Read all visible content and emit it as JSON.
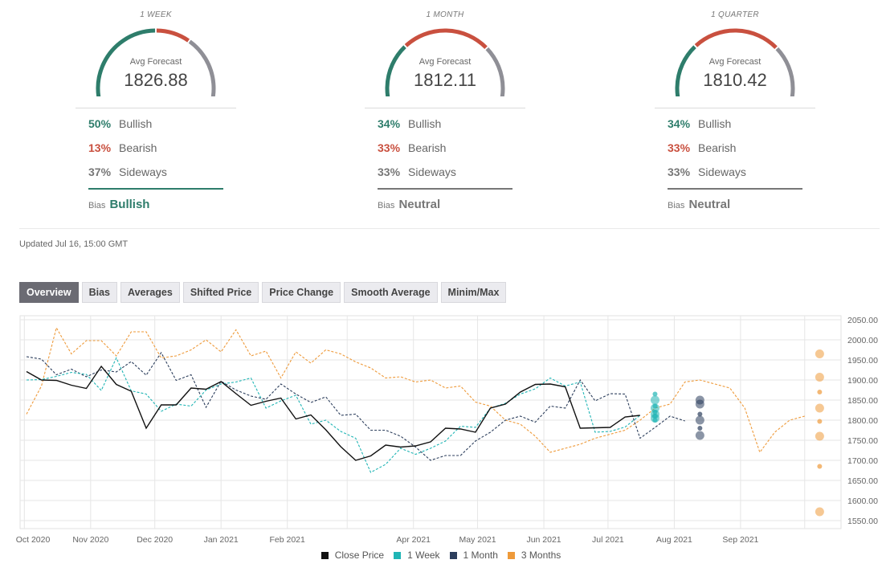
{
  "cards": [
    {
      "period": "1 WEEK",
      "avg_label": "Avg Forecast",
      "avg_value": "1826.88",
      "bullish_pct": "50%",
      "bullish_label": "Bullish",
      "bearish_pct": "13%",
      "bearish_label": "Bearish",
      "sideways_pct": "37%",
      "sideways_label": "Sideways",
      "bias_label": "Bias",
      "bias_value": "Bullish",
      "bias_color": "#2e7d6b",
      "gauge": {
        "bullish": 0.5,
        "bearish": 0.13,
        "sideways": 0.37
      }
    },
    {
      "period": "1 MONTH",
      "avg_label": "Avg Forecast",
      "avg_value": "1812.11",
      "bullish_pct": "34%",
      "bullish_label": "Bullish",
      "bearish_pct": "33%",
      "bearish_label": "Bearish",
      "sideways_pct": "33%",
      "sideways_label": "Sideways",
      "bias_label": "Bias",
      "bias_value": "Neutral",
      "bias_color": "#777777",
      "gauge": {
        "bullish": 0.34,
        "bearish": 0.33,
        "sideways": 0.33
      }
    },
    {
      "period": "1 QUARTER",
      "avg_label": "Avg Forecast",
      "avg_value": "1810.42",
      "bullish_pct": "34%",
      "bullish_label": "Bullish",
      "bearish_pct": "33%",
      "bearish_label": "Bearish",
      "sideways_pct": "33%",
      "sideways_label": "Sideways",
      "bias_label": "Bias",
      "bias_value": "Neutral",
      "bias_color": "#777777",
      "gauge": {
        "bullish": 0.34,
        "bearish": 0.33,
        "sideways": 0.33
      }
    }
  ],
  "colors": {
    "bullish": "#2e7d6b",
    "bearish": "#c9503f",
    "sideways": "#8f8f96",
    "close": "#111111",
    "week": "#20b5b5",
    "month": "#2c3e5c",
    "quarter": "#ee9a3a"
  },
  "updated": "Updated Jul 16, 15:00 GMT",
  "tabs": [
    "Overview",
    "Bias",
    "Averages",
    "Shifted Price",
    "Price Change",
    "Smooth Average",
    "Minim/Max"
  ],
  "active_tab": "Overview",
  "chart_data": {
    "type": "line",
    "x_tick_labels": [
      "Oct 2020",
      "Nov 2020",
      "Dec 2020",
      "Jan 2021",
      "Feb 2021",
      "Apr 2021",
      "May 2021",
      "Jun 2021",
      "Jul 2021",
      "Aug 2021",
      "Sep 2021"
    ],
    "y_ticks": [
      1550,
      1600,
      1650,
      1700,
      1750,
      1800,
      1850,
      1900,
      1950,
      2000,
      2050
    ],
    "y_tick_labels": [
      "1550.00",
      "1600.00",
      "1650.00",
      "1700.00",
      "1750.00",
      "1800.00",
      "1850.00",
      "1900.00",
      "1950.00",
      "2000.00",
      "2050.00"
    ],
    "ylim": [
      1530,
      2060
    ],
    "legend_position": "bottom",
    "series": [
      {
        "name": "Close Price",
        "key": "close",
        "style": "solid",
        "x": [
          "2020-10-02",
          "2020-10-09",
          "2020-10-16",
          "2020-10-23",
          "2020-10-30",
          "2020-11-06",
          "2020-11-13",
          "2020-11-20",
          "2020-11-27",
          "2020-12-04",
          "2020-12-11",
          "2020-12-18",
          "2020-12-25",
          "2021-01-01",
          "2021-01-08",
          "2021-01-15",
          "2021-01-22",
          "2021-01-29",
          "2021-02-05",
          "2021-02-12",
          "2021-02-19",
          "2021-02-26",
          "2021-03-05",
          "2021-03-12",
          "2021-03-19",
          "2021-03-26",
          "2021-04-02",
          "2021-04-09",
          "2021-04-16",
          "2021-04-23",
          "2021-04-30",
          "2021-05-07",
          "2021-05-14",
          "2021-05-21",
          "2021-05-28",
          "2021-06-04",
          "2021-06-11",
          "2021-06-18",
          "2021-06-25",
          "2021-07-02",
          "2021-07-09",
          "2021-07-16"
        ],
        "y": [
          1921,
          1900,
          1899,
          1887,
          1879,
          1934,
          1889,
          1872,
          1780,
          1838,
          1838,
          1880,
          1877,
          1896,
          1866,
          1837,
          1847,
          1855,
          1803,
          1813,
          1776,
          1734,
          1700,
          1711,
          1738,
          1733,
          1736,
          1746,
          1780,
          1778,
          1770,
          1830,
          1840,
          1870,
          1889,
          1890,
          1883,
          1780,
          1781,
          1782,
          1808,
          1812
        ]
      },
      {
        "name": "1 Week",
        "key": "week",
        "style": "dashed",
        "x": [
          "2020-10-02",
          "2020-10-09",
          "2020-10-16",
          "2020-10-23",
          "2020-10-30",
          "2020-11-06",
          "2020-11-13",
          "2020-11-20",
          "2020-11-27",
          "2020-12-04",
          "2020-12-11",
          "2020-12-18",
          "2020-12-25",
          "2021-01-01",
          "2021-01-08",
          "2021-01-15",
          "2021-01-22",
          "2021-01-29",
          "2021-02-05",
          "2021-02-12",
          "2021-02-19",
          "2021-02-26",
          "2021-03-05",
          "2021-03-12",
          "2021-03-19",
          "2021-03-26",
          "2021-04-02",
          "2021-04-09",
          "2021-04-16",
          "2021-04-23",
          "2021-04-30",
          "2021-05-07",
          "2021-05-14",
          "2021-05-21",
          "2021-05-28",
          "2021-06-04",
          "2021-06-11",
          "2021-06-18",
          "2021-06-25",
          "2021-07-02",
          "2021-07-09",
          "2021-07-16"
        ],
        "y": [
          1900,
          1901,
          1909,
          1919,
          1914,
          1874,
          1955,
          1873,
          1865,
          1822,
          1840,
          1835,
          1875,
          1890,
          1895,
          1905,
          1830,
          1848,
          1862,
          1790,
          1800,
          1772,
          1755,
          1670,
          1690,
          1730,
          1715,
          1730,
          1748,
          1785,
          1782,
          1830,
          1842,
          1865,
          1878,
          1905,
          1885,
          1895,
          1770,
          1772,
          1783,
          1812
        ]
      },
      {
        "name": "1 Month",
        "key": "month",
        "style": "dashed",
        "x": [
          "2020-10-02",
          "2020-10-09",
          "2020-10-16",
          "2020-10-23",
          "2020-10-30",
          "2020-11-06",
          "2020-11-13",
          "2020-11-20",
          "2020-11-27",
          "2020-12-04",
          "2020-12-11",
          "2020-12-18",
          "2020-12-25",
          "2021-01-01",
          "2021-01-08",
          "2021-01-15",
          "2021-01-22",
          "2021-01-29",
          "2021-02-05",
          "2021-02-12",
          "2021-02-19",
          "2021-02-26",
          "2021-03-05",
          "2021-03-12",
          "2021-03-19",
          "2021-03-26",
          "2021-04-02",
          "2021-04-09",
          "2021-04-16",
          "2021-04-23",
          "2021-04-30",
          "2021-05-07",
          "2021-05-14",
          "2021-05-21",
          "2021-05-28",
          "2021-06-04",
          "2021-06-11",
          "2021-06-18",
          "2021-06-25",
          "2021-07-02",
          "2021-07-09",
          "2021-07-16",
          "2021-07-23",
          "2021-07-30",
          "2021-08-06"
        ],
        "y": [
          1958,
          1952,
          1913,
          1927,
          1908,
          1925,
          1920,
          1946,
          1912,
          1968,
          1899,
          1913,
          1832,
          1897,
          1875,
          1860,
          1852,
          1890,
          1865,
          1844,
          1858,
          1812,
          1815,
          1775,
          1775,
          1760,
          1733,
          1700,
          1712,
          1712,
          1748,
          1770,
          1800,
          1810,
          1795,
          1835,
          1830,
          1900,
          1848,
          1866,
          1865,
          1755,
          1782,
          1810,
          1798
        ]
      },
      {
        "name": "3 Months",
        "key": "quarter",
        "style": "dashed",
        "x": [
          "2020-10-02",
          "2020-10-09",
          "2020-10-16",
          "2020-10-23",
          "2020-10-30",
          "2020-11-06",
          "2020-11-13",
          "2020-11-20",
          "2020-11-27",
          "2020-12-04",
          "2020-12-11",
          "2020-12-18",
          "2020-12-25",
          "2021-01-01",
          "2021-01-08",
          "2021-01-15",
          "2021-01-22",
          "2021-01-29",
          "2021-02-05",
          "2021-02-12",
          "2021-02-19",
          "2021-02-26",
          "2021-03-05",
          "2021-03-12",
          "2021-03-19",
          "2021-03-26",
          "2021-04-02",
          "2021-04-09",
          "2021-04-16",
          "2021-04-23",
          "2021-04-30",
          "2021-05-07",
          "2021-05-14",
          "2021-05-21",
          "2021-05-28",
          "2021-06-04",
          "2021-06-11",
          "2021-06-18",
          "2021-06-25",
          "2021-07-02",
          "2021-07-09",
          "2021-07-16",
          "2021-07-23",
          "2021-07-30",
          "2021-08-06",
          "2021-08-13",
          "2021-08-20",
          "2021-08-27",
          "2021-09-03",
          "2021-09-10",
          "2021-09-17",
          "2021-09-24",
          "2021-10-01"
        ],
        "y": [
          1815,
          1885,
          2030,
          1965,
          1998,
          1998,
          1960,
          2020,
          2020,
          1955,
          1960,
          1975,
          2000,
          1970,
          2025,
          1960,
          1972,
          1905,
          1970,
          1942,
          1975,
          1965,
          1945,
          1930,
          1905,
          1908,
          1895,
          1900,
          1880,
          1885,
          1845,
          1835,
          1800,
          1790,
          1760,
          1720,
          1730,
          1740,
          1755,
          1765,
          1775,
          1800,
          1830,
          1840,
          1895,
          1900,
          1890,
          1880,
          1830,
          1720,
          1770,
          1800,
          1810
        ]
      }
    ],
    "forecast_points": [
      {
        "key": "week",
        "x": "2021-07-23",
        "values": [
          1865,
          1850,
          1835,
          1830,
          1820,
          1815,
          1810,
          1805,
          1800
        ]
      },
      {
        "key": "month",
        "x": "2021-08-13",
        "values": [
          1850,
          1840,
          1815,
          1800,
          1780,
          1762
        ]
      },
      {
        "key": "quarter",
        "x": "2021-10-08",
        "values": [
          1965,
          1907,
          1870,
          1830,
          1797,
          1760,
          1685,
          1572
        ]
      }
    ]
  }
}
